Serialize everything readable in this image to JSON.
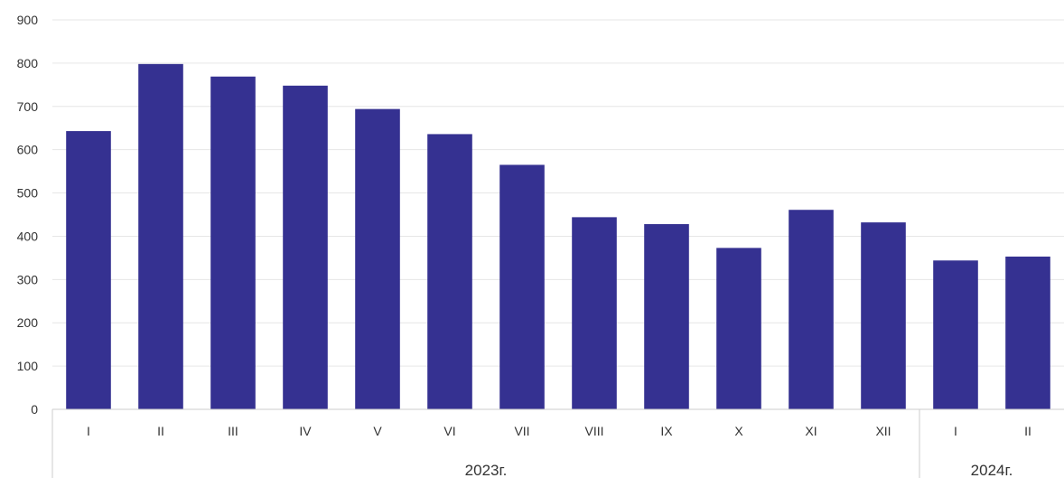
{
  "chart_data": {
    "type": "bar",
    "title": "",
    "xlabel": "",
    "ylabel": "",
    "categories": [
      "I",
      "II",
      "III",
      "IV",
      "V",
      "VI",
      "VII",
      "VIII",
      "IX",
      "X",
      "XI",
      "XII",
      "I",
      "II"
    ],
    "groups": [
      {
        "label": "2023г.",
        "count": 12
      },
      {
        "label": "2024г.",
        "count": 2
      }
    ],
    "values": [
      643,
      798,
      769,
      748,
      694,
      636,
      565,
      444,
      428,
      373,
      461,
      432,
      344,
      353
    ],
    "ylim": [
      0,
      900
    ],
    "yticks": [
      "0",
      "100",
      "200",
      "300",
      "400",
      "500",
      "600",
      "700",
      "800",
      "900"
    ],
    "grid": true,
    "legend": "none",
    "bar_color": "#353191",
    "grid_color": "#e6e6e6",
    "axis_color": "#cccccc"
  }
}
